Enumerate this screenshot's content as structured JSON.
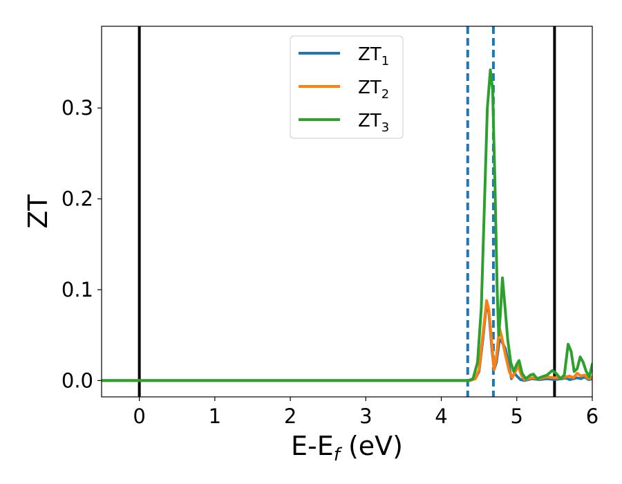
{
  "chart_data": {
    "type": "line",
    "title": "",
    "xlabel": {
      "main": "E-E",
      "sub": "f",
      "unit": " (eV)"
    },
    "ylabel": "ZT",
    "xlim": [
      -0.5,
      6
    ],
    "ylim": [
      -0.018,
      0.39
    ],
    "xticks": [
      0,
      1,
      2,
      3,
      4,
      5,
      6
    ],
    "xtick_labels": [
      "0",
      "1",
      "2",
      "3",
      "4",
      "5",
      "6"
    ],
    "yticks": [
      0.0,
      0.1,
      0.2,
      0.3
    ],
    "ytick_labels": [
      "0.0",
      "0.1",
      "0.2",
      "0.3"
    ],
    "grid": false,
    "legend_position": "top-center",
    "vertical_lines": [
      {
        "x": 0.0,
        "color": "#000000",
        "style": "solid"
      },
      {
        "x": 5.5,
        "color": "#000000",
        "style": "solid"
      },
      {
        "x": 4.35,
        "color": "#1f77b4",
        "style": "dashed"
      },
      {
        "x": 4.69,
        "color": "#1f77b4",
        "style": "dashed"
      }
    ],
    "series": [
      {
        "name": "ZT",
        "name_sub": "1",
        "color": "#1f77b4",
        "points": [
          [
            -0.5,
            0
          ],
          [
            4.3,
            0
          ],
          [
            4.38,
            0
          ],
          [
            4.45,
            0.002
          ],
          [
            4.5,
            0.01
          ],
          [
            4.55,
            0.045
          ],
          [
            4.6,
            0.085
          ],
          [
            4.63,
            0.075
          ],
          [
            4.67,
            0.035
          ],
          [
            4.7,
            0.012
          ],
          [
            4.73,
            0.02
          ],
          [
            4.77,
            0.045
          ],
          [
            4.8,
            0.043
          ],
          [
            4.85,
            0.035
          ],
          [
            4.9,
            0.015
          ],
          [
            4.93,
            0.002
          ],
          [
            4.97,
            0.008
          ],
          [
            5.0,
            0.005
          ],
          [
            5.05,
            0.001
          ],
          [
            5.1,
            0
          ],
          [
            5.2,
            0.002
          ],
          [
            5.3,
            0.001
          ],
          [
            5.4,
            0.002
          ],
          [
            5.5,
            0.001
          ],
          [
            5.6,
            0.002
          ],
          [
            5.65,
            0.003
          ],
          [
            5.7,
            0.001
          ],
          [
            5.8,
            0.003
          ],
          [
            5.85,
            0.002
          ],
          [
            5.9,
            0.004
          ],
          [
            5.95,
            0.001
          ],
          [
            6.0,
            0.002
          ]
        ]
      },
      {
        "name": "ZT",
        "name_sub": "2",
        "color": "#ff7f0e",
        "points": [
          [
            -0.5,
            0
          ],
          [
            4.3,
            0
          ],
          [
            4.38,
            0
          ],
          [
            4.45,
            0.002
          ],
          [
            4.5,
            0.012
          ],
          [
            4.55,
            0.05
          ],
          [
            4.6,
            0.088
          ],
          [
            4.63,
            0.078
          ],
          [
            4.67,
            0.04
          ],
          [
            4.7,
            0.012
          ],
          [
            4.73,
            0.025
          ],
          [
            4.77,
            0.058
          ],
          [
            4.8,
            0.048
          ],
          [
            4.85,
            0.028
          ],
          [
            4.9,
            0.01
          ],
          [
            4.94,
            0.003
          ],
          [
            4.98,
            0.01
          ],
          [
            5.02,
            0.016
          ],
          [
            5.06,
            0.006
          ],
          [
            5.1,
            0.001
          ],
          [
            5.2,
            0.003
          ],
          [
            5.3,
            0.002
          ],
          [
            5.4,
            0.004
          ],
          [
            5.5,
            0.003
          ],
          [
            5.6,
            0.003
          ],
          [
            5.7,
            0.005
          ],
          [
            5.75,
            0.003
          ],
          [
            5.8,
            0.008
          ],
          [
            5.85,
            0.005
          ],
          [
            5.9,
            0.006
          ],
          [
            5.95,
            0.002
          ],
          [
            6.0,
            0.004
          ]
        ]
      },
      {
        "name": "ZT",
        "name_sub": "3",
        "color": "#2ca02c",
        "points": [
          [
            -0.5,
            0
          ],
          [
            4.3,
            0
          ],
          [
            4.36,
            0
          ],
          [
            4.42,
            0.002
          ],
          [
            4.48,
            0.02
          ],
          [
            4.53,
            0.08
          ],
          [
            4.57,
            0.19
          ],
          [
            4.61,
            0.3
          ],
          [
            4.65,
            0.342
          ],
          [
            4.68,
            0.32
          ],
          [
            4.71,
            0.22
          ],
          [
            4.74,
            0.1
          ],
          [
            4.76,
            0.05
          ],
          [
            4.78,
            0.07
          ],
          [
            4.81,
            0.113
          ],
          [
            4.84,
            0.085
          ],
          [
            4.88,
            0.045
          ],
          [
            4.92,
            0.02
          ],
          [
            4.96,
            0.01
          ],
          [
            5.0,
            0.018
          ],
          [
            5.03,
            0.022
          ],
          [
            5.07,
            0.008
          ],
          [
            5.12,
            0.002
          ],
          [
            5.18,
            0.006
          ],
          [
            5.22,
            0.007
          ],
          [
            5.27,
            0.002
          ],
          [
            5.33,
            0.004
          ],
          [
            5.4,
            0.006
          ],
          [
            5.47,
            0.011
          ],
          [
            5.52,
            0.008
          ],
          [
            5.58,
            0.002
          ],
          [
            5.63,
            0.006
          ],
          [
            5.68,
            0.04
          ],
          [
            5.72,
            0.032
          ],
          [
            5.76,
            0.01
          ],
          [
            5.8,
            0.013
          ],
          [
            5.84,
            0.026
          ],
          [
            5.88,
            0.02
          ],
          [
            5.92,
            0.01
          ],
          [
            5.96,
            0.004
          ],
          [
            6.0,
            0.018
          ]
        ]
      }
    ]
  }
}
